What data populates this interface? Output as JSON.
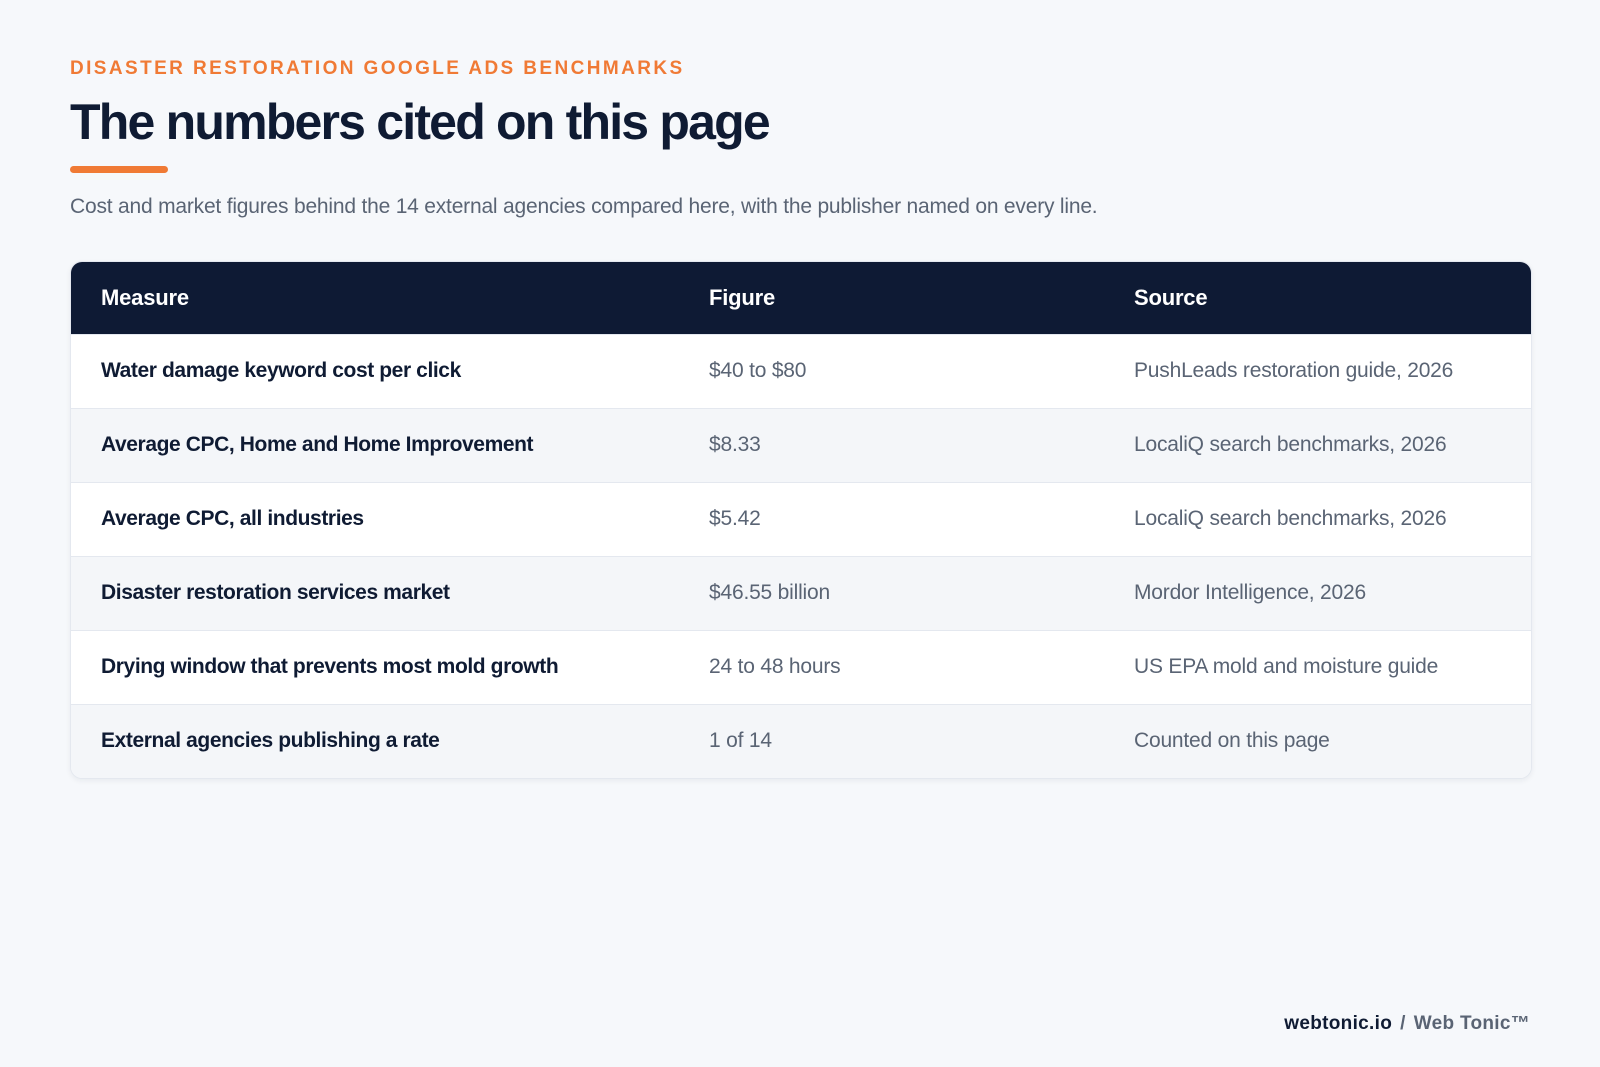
{
  "header": {
    "eyebrow": "DISASTER RESTORATION GOOGLE ADS BENCHMARKS",
    "title": "The numbers cited on this page",
    "subtitle": "Cost and market figures behind the 14 external agencies compared here, with the publisher named on every line."
  },
  "table": {
    "columns": [
      "Measure",
      "Figure",
      "Source"
    ],
    "rows": [
      {
        "measure": "Water damage keyword cost per click",
        "figure": "$40 to $80",
        "source": "PushLeads restoration guide, 2026"
      },
      {
        "measure": "Average CPC, Home and Home Improvement",
        "figure": "$8.33",
        "source": "LocaliQ search benchmarks, 2026"
      },
      {
        "measure": "Average CPC, all industries",
        "figure": "$5.42",
        "source": "LocaliQ search benchmarks, 2026"
      },
      {
        "measure": "Disaster restoration services market",
        "figure": "$46.55 billion",
        "source": "Mordor Intelligence, 2026"
      },
      {
        "measure": "Drying window that prevents most mold growth",
        "figure": "24 to 48 hours",
        "source": "US EPA mold and moisture guide"
      },
      {
        "measure": "External agencies publishing a rate",
        "figure": "1 of 14",
        "source": "Counted on this page"
      }
    ]
  },
  "footer": {
    "domain": "webtonic.io",
    "separator": "/",
    "brand": "Web Tonic™"
  },
  "colors": {
    "accent": "#f07a35",
    "header_bg": "#0e1a34",
    "page_bg": "#f6f8fb",
    "text_dark": "#0f1b33",
    "text_muted": "#5a6474"
  }
}
